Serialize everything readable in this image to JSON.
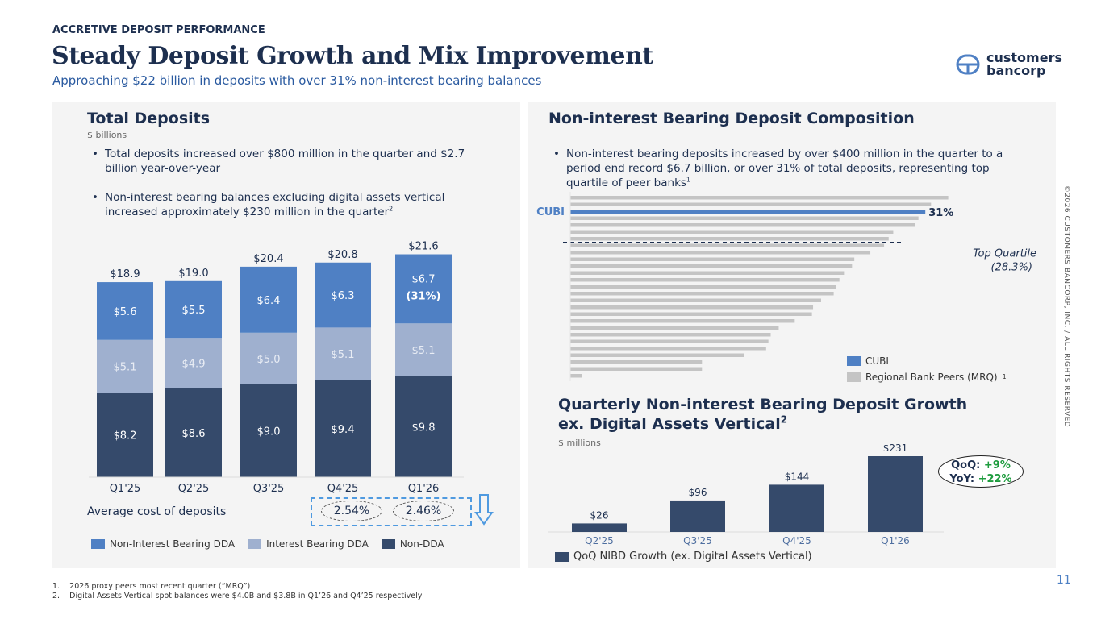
{
  "header": {
    "eyebrow": "ACCRETIVE DEPOSIT PERFORMANCE",
    "title": "Steady Deposit Growth and Mix Improvement",
    "subtitle": "Approaching $22 billion in deposits with over 31% non-interest bearing balances",
    "logo_line1": "customers",
    "logo_line2": "bancorp"
  },
  "left": {
    "title": "Total Deposits",
    "unit": "$ billions",
    "bullets": [
      "Total deposits increased over $800 million in the quarter and $2.7 billion year-over-year",
      "Non-interest bearing balances excluding digital assets vertical increased approximately $230 million in the quarter"
    ],
    "bullet2_sup": "2",
    "avg_cost_label": "Average cost of deposits",
    "avg_cost_values": [
      "2.54%",
      "2.46%"
    ]
  },
  "right": {
    "title": "Non-interest Bearing Deposit Composition",
    "bullet": "Non-interest bearing deposits increased by over $400 million in the quarter to a period end record $6.7 billion, or over 31% of total deposits, representing top quartile of peer banks",
    "bullet_sup": "1",
    "chart2_title_line1": "Quarterly Non-interest Bearing Deposit Growth",
    "chart2_title_line2": "ex. Digital Assets Vertical",
    "chart2_title_sup": "2",
    "chart2_unit": "$ millions",
    "qoq_label": "QoQ:",
    "qoq_value": "+9%",
    "yoy_label": "YoY:",
    "yoy_value": "+22%"
  },
  "chart_data": [
    {
      "type": "bar",
      "stacked": true,
      "categories": [
        "Q1'25",
        "Q2'25",
        "Q3'25",
        "Q4'25",
        "Q1'26"
      ],
      "series": [
        {
          "name": "Non-DDA",
          "color": "#354a6b",
          "values": [
            8.2,
            8.6,
            9.0,
            9.4,
            9.8
          ]
        },
        {
          "name": "Interest Bearing DDA",
          "color": "#9fb0cf",
          "values": [
            5.1,
            4.9,
            5.0,
            5.1,
            5.1
          ]
        },
        {
          "name": "Non-Interest Bearing DDA",
          "color": "#4f80c4",
          "values": [
            5.6,
            5.5,
            6.4,
            6.3,
            6.7
          ]
        }
      ],
      "totals": [
        "$18.9",
        "$19.0",
        "$20.4",
        "$20.8",
        "$21.6"
      ],
      "labels": [
        [
          "$8.2",
          "$8.6",
          "$9.0",
          "$9.4",
          "$9.8"
        ],
        [
          "$5.1",
          "$4.9",
          "$5.0",
          "$5.1",
          "$5.1"
        ],
        [
          "$5.6",
          "$5.5",
          "$6.4",
          "$6.3",
          "$6.7"
        ]
      ],
      "annotation": "(31%)",
      "legend": [
        "Non-Interest Bearing DDA",
        "Interest Bearing DDA",
        "Non-DDA"
      ],
      "ylim": [
        0,
        22
      ]
    },
    {
      "type": "bar",
      "orientation": "horizontal",
      "series": [
        {
          "name": "CUBI",
          "color": "#4f80c4"
        },
        {
          "name": "Regional Bank Peers (MRQ)",
          "color": "#c4c4c4"
        }
      ],
      "values": [
        33.0,
        31.5,
        31.0,
        30.4,
        30.1,
        28.2,
        27.8,
        27.4,
        26.2,
        24.8,
        24.6,
        23.9,
        23.5,
        23.2,
        23.0,
        21.9,
        21.2,
        21.1,
        19.6,
        18.2,
        17.5,
        17.3,
        17.1,
        15.2,
        11.5,
        11.5,
        1.0
      ],
      "highlight_index": 2,
      "highlight_label": "CUBI",
      "highlight_value_label": "31%",
      "reference_line": {
        "value": 28.3,
        "label1": "Top Quartile",
        "label2": "(28.3%)"
      },
      "legend": [
        "CUBI",
        "Regional Bank Peers (MRQ)"
      ],
      "legend_sup": "1"
    },
    {
      "type": "bar",
      "categories": [
        "Q2'25",
        "Q3'25",
        "Q4'25",
        "Q1'26"
      ],
      "values": [
        26,
        96,
        144,
        231
      ],
      "labels": [
        "$26",
        "$96",
        "$144",
        "$231"
      ],
      "series": [
        {
          "name": "QoQ NIBD Growth (ex. Digital Assets Vertical)",
          "color": "#354a6b"
        }
      ],
      "ylim": [
        0,
        231
      ]
    }
  ],
  "footnotes": [
    "2026 proxy peers most recent quarter (“MRQ”)",
    "Digital Assets Vertical spot balances were $4.0B and $3.8B in Q1’26 and Q4’25 respectively"
  ],
  "copyright": "©2026 CUSTOMERS BANCORP, INC. / ALL RIGHTS RESERVED",
  "page_number": "11"
}
